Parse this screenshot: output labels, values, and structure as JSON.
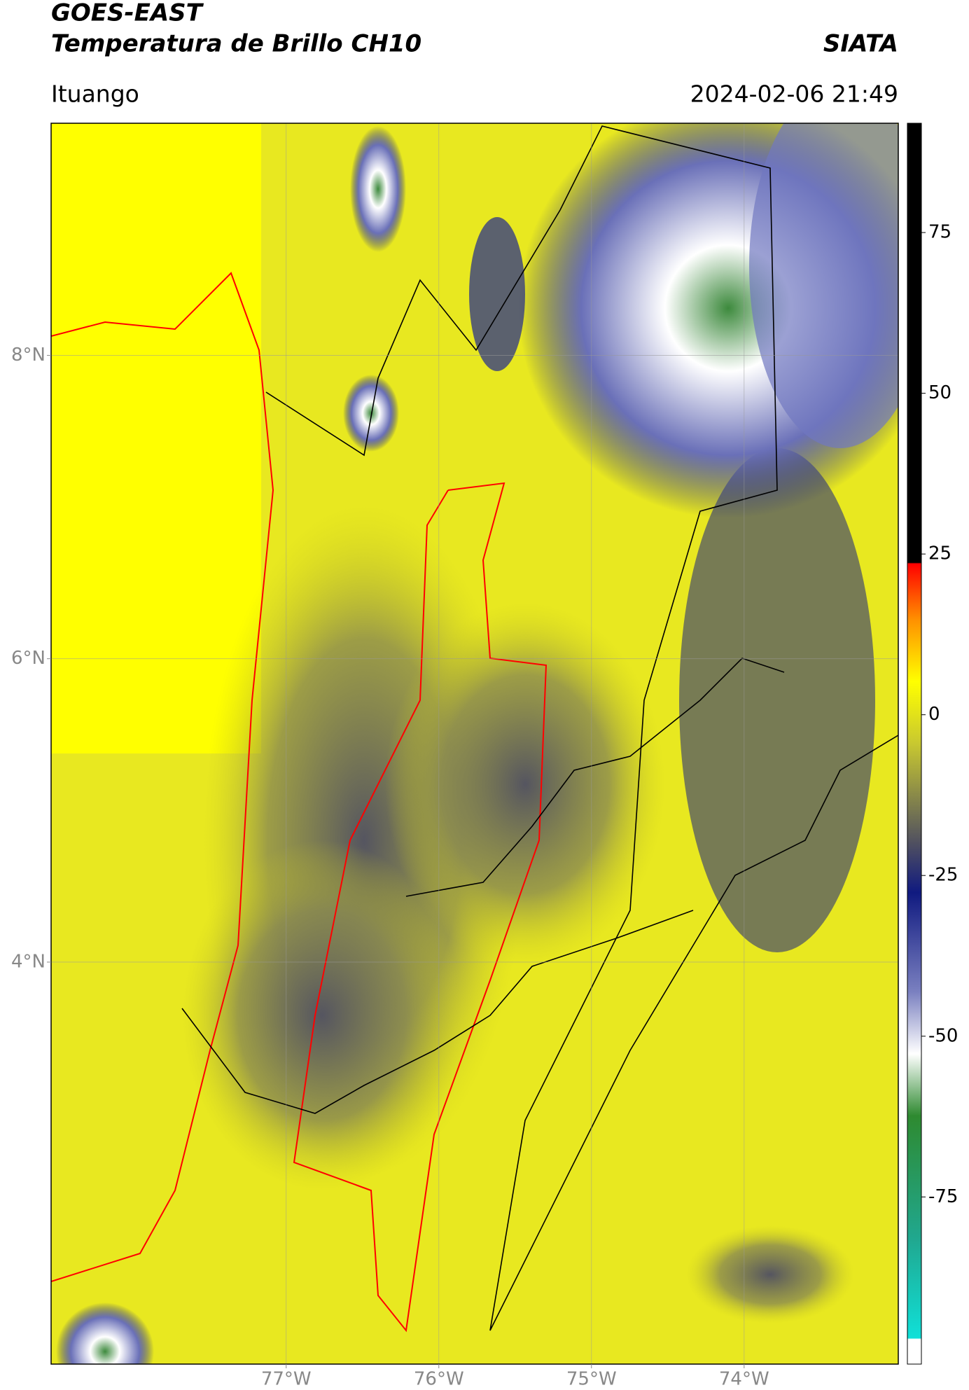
{
  "header": {
    "title": "GOES-EAST",
    "subtitle": "Temperatura de Brillo CH10",
    "source": "SIATA",
    "location": "Ituango",
    "datetime": "2024-02-06 21:49"
  },
  "map": {
    "xlim": [
      -78.54,
      -72.99
    ],
    "ylim": [
      1.35,
      9.53
    ],
    "xticks": [
      {
        "value": -77,
        "label": "77°W"
      },
      {
        "value": -76,
        "label": "76°W"
      },
      {
        "value": -75,
        "label": "75°W"
      },
      {
        "value": -74,
        "label": "74°W"
      }
    ],
    "yticks": [
      {
        "value": 4,
        "label": "4°N"
      },
      {
        "value": 6,
        "label": "6°N"
      },
      {
        "value": 8,
        "label": "8°N"
      }
    ],
    "grid": true
  },
  "colorbar": {
    "lim": [
      -101,
      92
    ],
    "ticks": [
      -75,
      -50,
      -25,
      0,
      25,
      50,
      75
    ]
  }
}
